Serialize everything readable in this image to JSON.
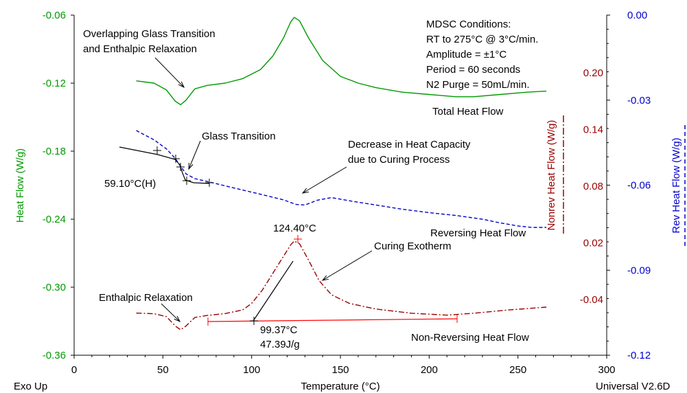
{
  "chart_data": {
    "type": "line",
    "xlabel": "Temperature (°C)",
    "x_range": [
      0,
      300
    ],
    "x_ticks": [
      "0",
      "50",
      "100",
      "150",
      "200",
      "250",
      "300"
    ],
    "left_axis": {
      "label": "Heat Flow (W/g)",
      "range": [
        -0.36,
        -0.06
      ],
      "ticks": [
        "-0.06",
        "-0.12",
        "-0.18",
        "-0.24",
        "-0.30",
        "-0.36"
      ],
      "color": "#009900"
    },
    "mid_axis": {
      "label": "Nonrev Heat Flow (W/g)",
      "ticks": [
        "0.20",
        "0.14",
        "0.08",
        "0.02",
        "-0.04"
      ],
      "color": "#990000"
    },
    "right_axis": {
      "label": "Rev Heat Flow (W/g)",
      "range": [
        -0.12,
        0.0
      ],
      "ticks": [
        "0.00",
        "-0.03",
        "-0.06",
        "-0.09",
        "-0.12"
      ],
      "color": "#0000cc"
    },
    "footer_left": "Exo Up",
    "footer_right": "Universal V2.6D",
    "conditions": [
      "MDSC Conditions:",
      "RT to 275°C @ 3°C/min.",
      "Amplitude = ±1°C",
      "Period = 60 seconds",
      "N2 Purge = 50mL/min."
    ],
    "series": [
      {
        "name": "Total Heat Flow",
        "color": "#009900",
        "axis": "left",
        "style": "solid",
        "points": [
          [
            35,
            -0.118
          ],
          [
            45,
            -0.12
          ],
          [
            52,
            -0.126
          ],
          [
            57,
            -0.136
          ],
          [
            60,
            -0.139
          ],
          [
            63,
            -0.135
          ],
          [
            68,
            -0.125
          ],
          [
            75,
            -0.122
          ],
          [
            85,
            -0.12
          ],
          [
            95,
            -0.116
          ],
          [
            105,
            -0.108
          ],
          [
            112,
            -0.096
          ],
          [
            118,
            -0.08
          ],
          [
            122,
            -0.066
          ],
          [
            124,
            -0.062
          ],
          [
            127,
            -0.065
          ],
          [
            132,
            -0.08
          ],
          [
            140,
            -0.1
          ],
          [
            150,
            -0.114
          ],
          [
            160,
            -0.12
          ],
          [
            170,
            -0.124
          ],
          [
            185,
            -0.128
          ],
          [
            200,
            -0.13
          ],
          [
            215,
            -0.132
          ],
          [
            225,
            -0.132
          ],
          [
            240,
            -0.13
          ],
          [
            255,
            -0.128
          ],
          [
            266,
            -0.127
          ]
        ]
      },
      {
        "name": "Reversing Heat Flow",
        "color": "#0000cc",
        "axis": "right",
        "style": "dashed",
        "points": [
          [
            35,
            -0.0407
          ],
          [
            45,
            -0.044
          ],
          [
            52,
            -0.0472
          ],
          [
            57,
            -0.0506
          ],
          [
            60,
            -0.0533
          ],
          [
            63,
            -0.056
          ],
          [
            68,
            -0.0577
          ],
          [
            75,
            -0.0587
          ],
          [
            90,
            -0.061
          ],
          [
            105,
            -0.0632
          ],
          [
            118,
            -0.0652
          ],
          [
            125,
            -0.0668
          ],
          [
            130,
            -0.067
          ],
          [
            137,
            -0.0653
          ],
          [
            145,
            -0.0644
          ],
          [
            155,
            -0.0655
          ],
          [
            170,
            -0.067
          ],
          [
            185,
            -0.0685
          ],
          [
            200,
            -0.0697
          ],
          [
            215,
            -0.0707
          ],
          [
            230,
            -0.072
          ],
          [
            240,
            -0.0733
          ],
          [
            250,
            -0.0744
          ],
          [
            258,
            -0.0749
          ],
          [
            266,
            -0.0749
          ]
        ]
      },
      {
        "name": "Non-Reversing Heat Flow",
        "color": "#990000",
        "axis": "mid",
        "style": "dashdot",
        "points": [
          [
            35,
            -0.0543
          ],
          [
            45,
            -0.055
          ],
          [
            52,
            -0.058
          ],
          [
            57,
            -0.068
          ],
          [
            60,
            -0.072
          ],
          [
            63,
            -0.068
          ],
          [
            68,
            -0.059
          ],
          [
            75,
            -0.0568
          ],
          [
            85,
            -0.0548
          ],
          [
            95,
            -0.051
          ],
          [
            100,
            -0.044
          ],
          [
            106,
            -0.03
          ],
          [
            112,
            -0.012
          ],
          [
            118,
            0.006
          ],
          [
            122,
            0.018
          ],
          [
            124,
            0.022
          ],
          [
            127,
            0.019
          ],
          [
            132,
            0.002
          ],
          [
            138,
            -0.02
          ],
          [
            145,
            -0.035
          ],
          [
            155,
            -0.044
          ],
          [
            170,
            -0.05
          ],
          [
            190,
            -0.0545
          ],
          [
            210,
            -0.0565
          ],
          [
            225,
            -0.0545
          ],
          [
            245,
            -0.051
          ],
          [
            266,
            -0.048
          ]
        ]
      }
    ],
    "annotations": {
      "overlap_label": [
        "Overlapping Glass Transition",
        "and Enthalpic Relaxation"
      ],
      "glass_transition": "Glass Transition",
      "tg_value": "59.10°C(H)",
      "decrease_label": [
        "Decrease in Heat Capacity",
        "due to Curing Process"
      ],
      "curing_exotherm": "Curing Exotherm",
      "peak_temp": "124.40°C",
      "enthalpic_relaxation": "Enthalpic Relaxation",
      "onset_temp": "99.37°C",
      "enthalpy": "47.39J/g",
      "total_label": "Total Heat Flow",
      "reversing_label": "Reversing Heat Flow",
      "nonrev_label": "Non-Reversing Heat Flow"
    }
  }
}
